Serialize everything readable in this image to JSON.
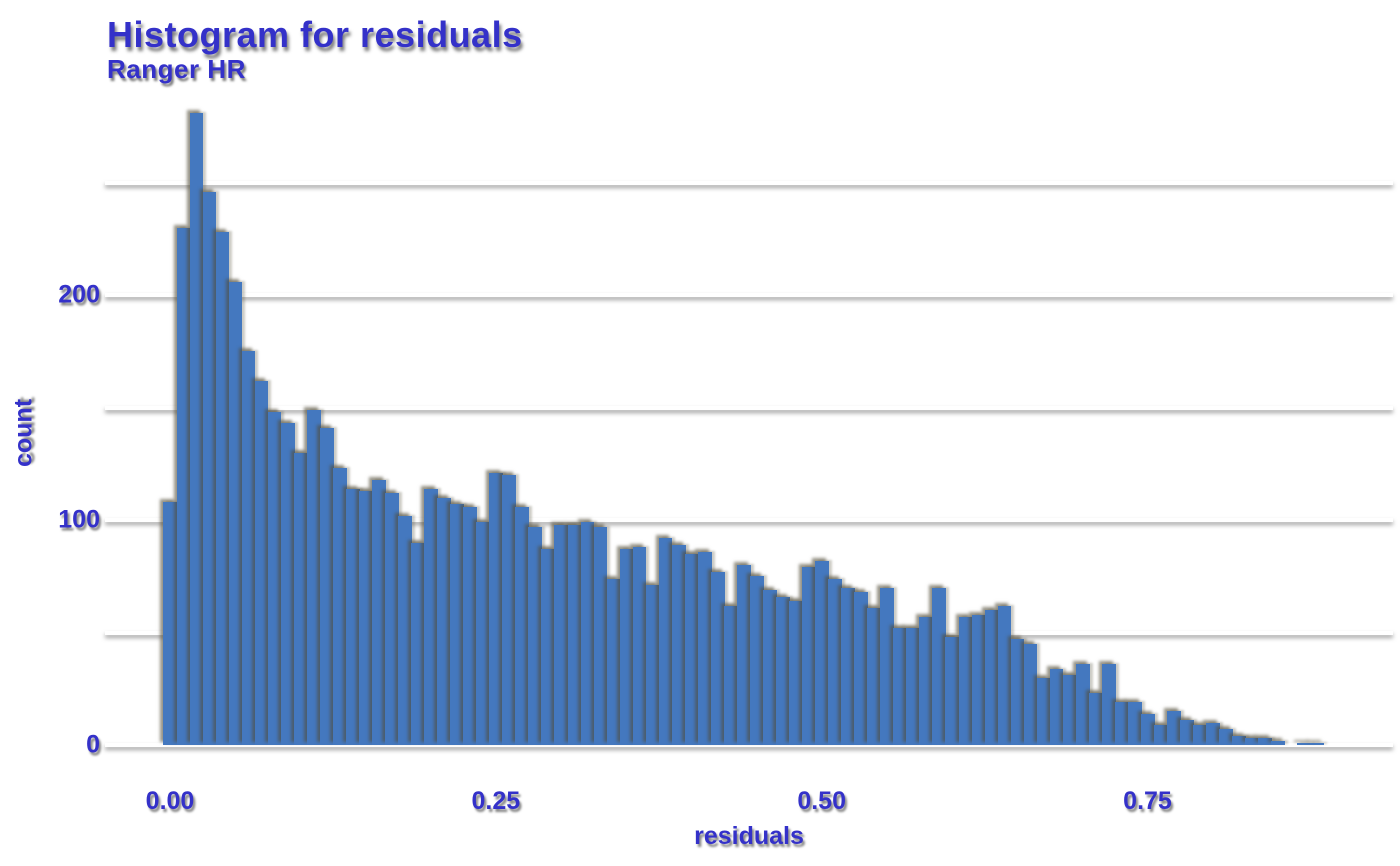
{
  "page": {
    "background": "#ffffff"
  },
  "header": {
    "title": "Histogram for residuals",
    "subtitle": "Ranger HR"
  },
  "colors": {
    "text": "#3431c9",
    "bar_fill": "#4478bf",
    "gridline": "#ffffff",
    "background": "#ffffff"
  },
  "chart_data": {
    "type": "bar",
    "subtype": "histogram",
    "title": "Histogram for residuals",
    "subtitle": "Ranger HR",
    "xlabel": "residuals",
    "ylabel": "count",
    "legend_position": "none",
    "grid": "horizontal-only",
    "xlim": [
      -0.055,
      0.94
    ],
    "ylim": [
      0,
      290
    ],
    "bin_width": 0.01,
    "bin_centers": [
      0.0,
      0.01,
      0.02,
      0.03,
      0.04,
      0.05,
      0.06,
      0.07,
      0.08,
      0.09,
      0.1,
      0.11,
      0.12,
      0.13,
      0.14,
      0.15,
      0.16,
      0.17,
      0.18,
      0.19,
      0.2,
      0.21,
      0.22,
      0.23,
      0.24,
      0.25,
      0.26,
      0.27,
      0.28,
      0.29,
      0.3,
      0.31,
      0.32,
      0.33,
      0.34,
      0.35,
      0.36,
      0.37,
      0.38,
      0.39,
      0.4,
      0.41,
      0.42,
      0.43,
      0.44,
      0.45,
      0.46,
      0.47,
      0.48,
      0.49,
      0.5,
      0.51,
      0.52,
      0.53,
      0.54,
      0.55,
      0.56,
      0.57,
      0.58,
      0.59,
      0.6,
      0.61,
      0.62,
      0.63,
      0.64,
      0.65,
      0.66,
      0.67,
      0.68,
      0.69,
      0.7,
      0.71,
      0.72,
      0.73,
      0.74,
      0.75,
      0.76,
      0.77,
      0.78,
      0.79,
      0.8,
      0.81,
      0.82,
      0.83,
      0.84,
      0.85,
      0.86,
      0.87,
      0.88
    ],
    "counts": [
      108,
      230,
      281,
      246,
      228,
      206,
      175,
      162,
      148,
      143,
      130,
      149,
      141,
      123,
      114,
      113,
      118,
      112,
      102,
      90,
      114,
      110,
      107,
      106,
      99,
      121,
      120,
      106,
      97,
      87,
      98,
      98,
      99,
      97,
      74,
      87,
      88,
      71,
      92,
      89,
      85,
      86,
      77,
      62,
      80,
      75,
      69,
      66,
      64,
      79,
      82,
      74,
      70,
      68,
      61,
      70,
      52,
      52,
      57,
      70,
      48,
      57,
      58,
      60,
      62,
      47,
      45,
      30,
      34,
      31,
      36,
      23,
      36,
      19,
      19,
      14,
      9,
      15,
      11,
      9,
      10,
      7,
      4,
      3,
      3,
      2,
      0,
      1,
      1
    ],
    "gridline_values": [
      0,
      50,
      100,
      150,
      200,
      250
    ],
    "y_ticks": [
      {
        "value": 0,
        "label": "0"
      },
      {
        "value": 100,
        "label": "100"
      },
      {
        "value": 200,
        "label": "200"
      }
    ],
    "x_ticks": [
      {
        "value": 0.0,
        "label": "0.00"
      },
      {
        "value": 0.25,
        "label": "0.25"
      },
      {
        "value": 0.5,
        "label": "0.50"
      },
      {
        "value": 0.75,
        "label": "0.75"
      }
    ]
  }
}
